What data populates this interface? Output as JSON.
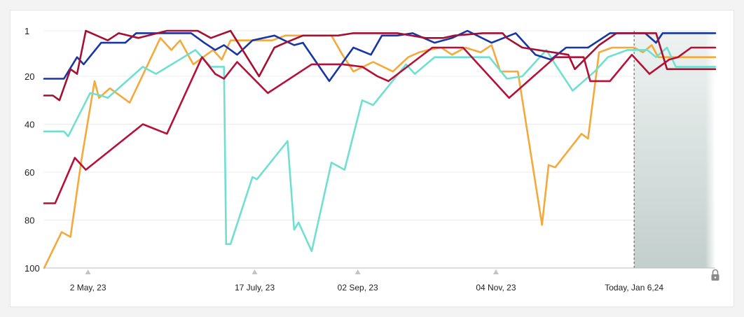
{
  "chart_data": {
    "type": "line",
    "title": "",
    "xlabel": "",
    "ylabel": "",
    "ylim": [
      1,
      100
    ],
    "y_inverted": true,
    "yticks": [
      1,
      20,
      40,
      60,
      80,
      100
    ],
    "x_ticks": [
      {
        "date": "2023-05-02",
        "label": "2 May, 23"
      },
      {
        "date": "2023-07-17",
        "label": "17 July, 23"
      },
      {
        "date": "2023-09-02",
        "label": "02 Sep, 23"
      },
      {
        "date": "2023-11-04",
        "label": "04 Nov, 23"
      },
      {
        "date": "2024-01-06",
        "label": "Today, Jan 6,24"
      }
    ],
    "xlim": [
      "2023-04-12",
      "2024-02-12"
    ],
    "forecast_start": "2024-01-06",
    "forecast_locked": true,
    "grid": true,
    "series": [
      {
        "color": "#f5a93a",
        "points": [
          [
            "2023-04-12",
            100
          ],
          [
            "2023-04-20",
            85
          ],
          [
            "2023-04-24",
            87
          ],
          [
            "2023-04-29",
            55
          ],
          [
            "2023-05-05",
            22
          ],
          [
            "2023-05-07",
            29
          ],
          [
            "2023-05-12",
            25
          ],
          [
            "2023-05-21",
            31
          ],
          [
            "2023-06-04",
            4
          ],
          [
            "2023-06-09",
            9
          ],
          [
            "2023-06-13",
            5
          ],
          [
            "2023-06-19",
            15
          ],
          [
            "2023-06-28",
            9
          ],
          [
            "2023-07-02",
            13
          ],
          [
            "2023-07-06",
            5
          ],
          [
            "2023-07-16",
            5
          ],
          [
            "2023-07-25",
            5
          ],
          [
            "2023-07-31",
            3
          ],
          [
            "2023-08-11",
            3
          ],
          [
            "2023-08-21",
            3
          ],
          [
            "2023-08-26",
            11
          ],
          [
            "2023-08-31",
            18
          ],
          [
            "2023-09-09",
            14
          ],
          [
            "2023-09-18",
            18
          ],
          [
            "2023-09-25",
            12
          ],
          [
            "2023-09-30",
            10
          ],
          [
            "2023-10-04",
            9
          ],
          [
            "2023-10-10",
            8
          ],
          [
            "2023-10-15",
            11
          ],
          [
            "2023-10-21",
            8
          ],
          [
            "2023-10-28",
            10
          ],
          [
            "2023-11-02",
            7
          ],
          [
            "2023-11-06",
            18
          ],
          [
            "2023-11-14",
            18
          ],
          [
            "2023-11-25",
            82
          ],
          [
            "2023-11-28",
            57
          ],
          [
            "2023-12-01",
            58
          ],
          [
            "2023-12-13",
            44
          ],
          [
            "2023-12-16",
            46
          ],
          [
            "2023-12-21",
            10
          ],
          [
            "2023-12-27",
            8
          ],
          [
            "2024-01-01",
            8
          ],
          [
            "2024-01-06",
            8
          ],
          [
            "2024-01-10",
            10
          ],
          [
            "2024-01-14",
            7
          ],
          [
            "2024-01-17",
            12
          ],
          [
            "2024-02-12",
            12
          ]
        ]
      },
      {
        "color": "#6fe0d0",
        "points": [
          [
            "2023-04-12",
            43
          ],
          [
            "2023-04-21",
            43
          ],
          [
            "2023-04-23",
            45
          ],
          [
            "2023-05-03",
            27
          ],
          [
            "2023-05-08",
            28
          ],
          [
            "2023-05-11",
            29
          ],
          [
            "2023-05-27",
            16
          ],
          [
            "2023-06-02",
            19
          ],
          [
            "2023-06-20",
            9
          ],
          [
            "2023-06-27",
            16
          ],
          [
            "2023-07-03",
            16
          ],
          [
            "2023-07-04",
            90
          ],
          [
            "2023-07-06",
            90
          ],
          [
            "2023-07-16",
            62
          ],
          [
            "2023-07-18",
            63
          ],
          [
            "2023-08-01",
            47
          ],
          [
            "2023-08-04",
            84
          ],
          [
            "2023-08-06",
            81
          ],
          [
            "2023-08-12",
            93
          ],
          [
            "2023-08-21",
            56
          ],
          [
            "2023-08-27",
            59
          ],
          [
            "2023-09-04",
            30
          ],
          [
            "2023-09-09",
            32
          ],
          [
            "2023-09-24",
            15
          ],
          [
            "2023-09-28",
            19
          ],
          [
            "2023-10-07",
            12
          ],
          [
            "2023-10-19",
            12
          ],
          [
            "2023-10-23",
            12
          ],
          [
            "2023-11-01",
            12
          ],
          [
            "2023-11-09",
            21
          ],
          [
            "2023-11-16",
            20
          ],
          [
            "2023-11-27",
            9
          ],
          [
            "2023-12-01",
            15
          ],
          [
            "2023-12-09",
            26
          ],
          [
            "2023-12-19",
            18
          ],
          [
            "2023-12-25",
            12
          ],
          [
            "2024-01-03",
            9
          ],
          [
            "2024-01-12",
            9
          ],
          [
            "2024-01-16",
            12
          ],
          [
            "2024-01-21",
            8
          ],
          [
            "2024-01-25",
            16
          ],
          [
            "2024-02-12",
            16
          ]
        ]
      },
      {
        "color": "#1736a6",
        "points": [
          [
            "2023-04-12",
            21
          ],
          [
            "2023-04-21",
            21
          ],
          [
            "2023-04-27",
            12
          ],
          [
            "2023-04-30",
            15
          ],
          [
            "2023-05-08",
            6
          ],
          [
            "2023-05-19",
            6
          ],
          [
            "2023-05-24",
            2
          ],
          [
            "2023-06-18",
            2
          ],
          [
            "2023-06-24",
            6
          ],
          [
            "2023-06-29",
            9
          ],
          [
            "2023-07-03",
            7
          ],
          [
            "2023-07-09",
            11
          ],
          [
            "2023-07-16",
            5
          ],
          [
            "2023-07-26",
            3
          ],
          [
            "2023-08-04",
            7
          ],
          [
            "2023-08-08",
            6
          ],
          [
            "2023-08-20",
            22
          ],
          [
            "2023-08-31",
            8
          ],
          [
            "2023-09-08",
            11
          ],
          [
            "2023-09-13",
            3
          ],
          [
            "2023-09-20",
            3
          ],
          [
            "2023-09-27",
            2
          ],
          [
            "2023-10-07",
            6
          ],
          [
            "2023-10-15",
            4
          ],
          [
            "2023-10-22",
            1
          ],
          [
            "2023-11-02",
            6
          ],
          [
            "2023-11-13",
            2
          ],
          [
            "2023-11-22",
            11
          ],
          [
            "2023-11-29",
            13
          ],
          [
            "2023-12-06",
            8
          ],
          [
            "2023-12-16",
            8
          ],
          [
            "2023-12-26",
            2
          ],
          [
            "2024-01-11",
            2
          ],
          [
            "2024-01-16",
            6
          ],
          [
            "2024-01-19",
            2
          ],
          [
            "2024-02-12",
            2
          ]
        ]
      },
      {
        "color": "#a50f31",
        "points": [
          [
            "2023-04-12",
            28
          ],
          [
            "2023-04-16",
            28
          ],
          [
            "2023-04-19",
            30
          ],
          [
            "2023-04-24",
            17
          ],
          [
            "2023-04-27",
            19
          ],
          [
            "2023-05-01",
            1
          ],
          [
            "2023-05-06",
            3
          ],
          [
            "2023-05-11",
            5
          ],
          [
            "2023-05-16",
            2
          ],
          [
            "2023-05-25",
            4
          ],
          [
            "2023-06-07",
            1
          ],
          [
            "2023-06-21",
            1
          ],
          [
            "2023-06-27",
            4
          ],
          [
            "2023-07-06",
            1
          ],
          [
            "2023-07-19",
            20
          ],
          [
            "2023-07-26",
            8
          ],
          [
            "2023-07-31",
            6
          ],
          [
            "2023-08-08",
            3
          ],
          [
            "2023-08-20",
            3
          ],
          [
            "2023-08-24",
            3
          ],
          [
            "2023-08-31",
            2
          ],
          [
            "2023-09-11",
            2
          ],
          [
            "2023-09-20",
            2
          ],
          [
            "2023-10-03",
            4
          ],
          [
            "2023-10-11",
            4
          ],
          [
            "2023-10-16",
            3
          ],
          [
            "2023-10-29",
            2
          ],
          [
            "2023-11-07",
            2
          ],
          [
            "2023-11-09",
            4
          ],
          [
            "2023-11-16",
            8
          ],
          [
            "2023-12-07",
            11
          ],
          [
            "2023-12-10",
            17
          ],
          [
            "2023-12-21",
            7
          ],
          [
            "2023-12-29",
            2
          ],
          [
            "2024-01-10",
            2
          ],
          [
            "2024-01-16",
            2
          ],
          [
            "2024-01-21",
            17
          ],
          [
            "2024-02-12",
            17
          ]
        ]
      },
      {
        "color": "#b80f37",
        "points": [
          [
            "2023-04-12",
            73
          ],
          [
            "2023-04-17",
            73
          ],
          [
            "2023-04-26",
            54
          ],
          [
            "2023-05-01",
            59
          ],
          [
            "2023-05-27",
            40
          ],
          [
            "2023-06-07",
            44
          ],
          [
            "2023-06-23",
            12
          ],
          [
            "2023-06-29",
            19
          ],
          [
            "2023-07-03",
            21
          ],
          [
            "2023-07-09",
            14
          ],
          [
            "2023-07-23",
            27
          ],
          [
            "2023-08-12",
            15
          ],
          [
            "2023-08-20",
            15
          ],
          [
            "2023-08-26",
            15
          ],
          [
            "2023-09-04",
            16
          ],
          [
            "2023-09-11",
            20
          ],
          [
            "2023-09-16",
            22
          ],
          [
            "2023-10-06",
            8
          ],
          [
            "2023-10-20",
            8
          ],
          [
            "2023-11-10",
            29
          ],
          [
            "2023-12-01",
            12
          ],
          [
            "2023-12-14",
            12
          ],
          [
            "2023-12-17",
            22
          ],
          [
            "2023-12-26",
            22
          ],
          [
            "2024-01-05",
            11
          ],
          [
            "2024-01-13",
            19
          ],
          [
            "2024-01-22",
            13
          ],
          [
            "2024-01-26",
            12
          ],
          [
            "2024-02-01",
            8
          ],
          [
            "2024-02-12",
            8
          ]
        ]
      }
    ]
  }
}
